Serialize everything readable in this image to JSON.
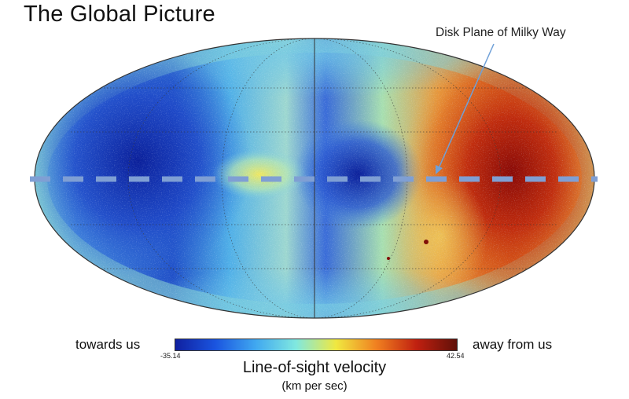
{
  "title": "The Global Picture",
  "annotation": "Disk Plane of Milky Way",
  "colorbar": {
    "left_label": "towards us",
    "right_label": "away from us",
    "min": "-35.14",
    "max": "42.54",
    "label": "Line-of-sight velocity",
    "units": "(km per sec)",
    "colors": [
      "#1020a0",
      "#1a55e0",
      "#40a8f0",
      "#80e8e0",
      "#f0e840",
      "#f08020",
      "#c02010",
      "#601008"
    ]
  },
  "map": {
    "projection": "mollweide",
    "disk_line_color": "#7f9fd4",
    "colors": {
      "deep_blue": "#1d3fb8",
      "blue": "#3d7de0",
      "cyan": "#64c6e8",
      "yellow": "#e8e060",
      "orange": "#e0701c",
      "red": "#b41e0c"
    }
  }
}
